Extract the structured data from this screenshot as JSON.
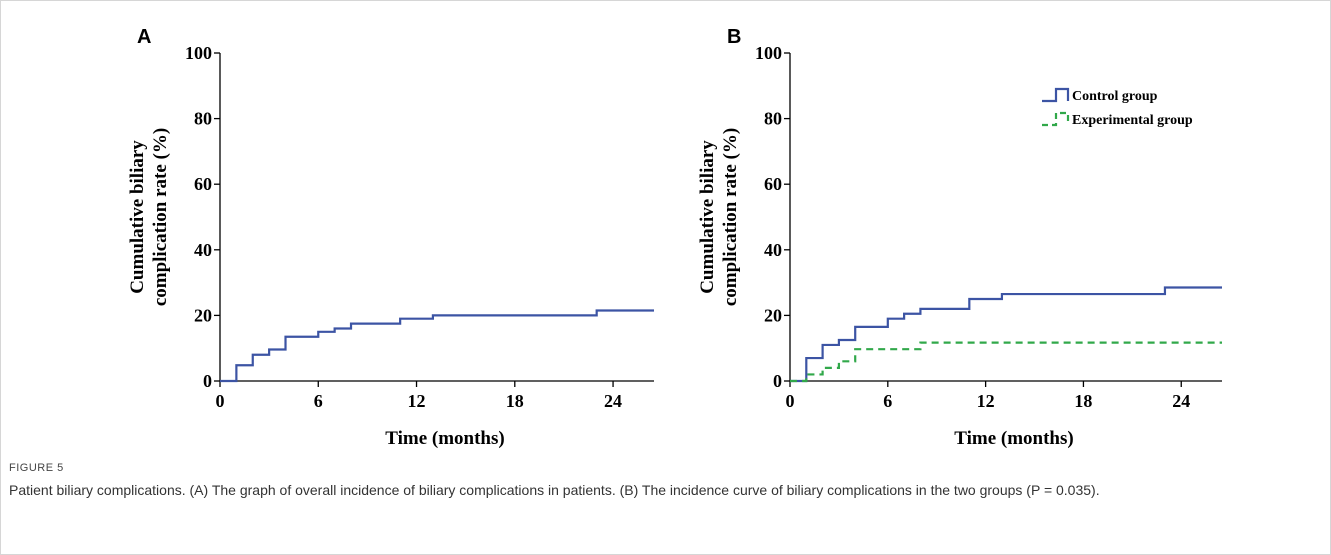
{
  "chart_data": [
    {
      "type": "line",
      "panel_label": "A",
      "title": "",
      "xlabel": "Time (months)",
      "ylabel_lines": [
        "Cumulative biliary",
        "complication rate (%)"
      ],
      "xlim": [
        0,
        26.5
      ],
      "ylim": [
        0,
        100
      ],
      "xticks": [
        0,
        6,
        12,
        18,
        24
      ],
      "yticks": [
        0,
        20,
        40,
        60,
        80,
        100
      ],
      "step": true,
      "legend": null,
      "series": [
        {
          "color": "#3c54a4",
          "dashed": false,
          "x": [
            0,
            1,
            2,
            3,
            4,
            6,
            7,
            8,
            11,
            13,
            23,
            26.5
          ],
          "y": [
            0,
            4.8,
            8.0,
            9.6,
            13.5,
            15.0,
            16.0,
            17.5,
            19.0,
            20.0,
            21.5,
            21.5
          ]
        }
      ]
    },
    {
      "type": "line",
      "panel_label": "B",
      "title": "",
      "xlabel": "Time (months)",
      "ylabel_lines": [
        "Cumulative biliary",
        "complication rate (%)"
      ],
      "xlim": [
        0,
        26.5
      ],
      "ylim": [
        0,
        100
      ],
      "xticks": [
        0,
        6,
        12,
        18,
        24
      ],
      "yticks": [
        0,
        20,
        40,
        60,
        80,
        100
      ],
      "step": true,
      "legend": "top-right",
      "series": [
        {
          "name": "Control group",
          "color": "#3c54a4",
          "dashed": false,
          "x": [
            0,
            1,
            2,
            3,
            4,
            6,
            7,
            8,
            11,
            13,
            23,
            26.5
          ],
          "y": [
            0,
            7.0,
            11.0,
            12.5,
            16.5,
            19.0,
            20.5,
            22.0,
            25.0,
            26.5,
            28.5,
            28.5
          ]
        },
        {
          "name": "Experimental group",
          "color": "#31a84a",
          "dashed": true,
          "x": [
            0,
            1,
            2,
            3,
            4,
            8,
            26.5
          ],
          "y": [
            0,
            2.0,
            4.0,
            6.0,
            9.7,
            11.7,
            11.7
          ]
        }
      ]
    }
  ],
  "caption": {
    "label": "FIGURE 5",
    "text": "Patient biliary complications. (A) The graph of overall incidence of biliary complications in patients. (B) The incidence curve of biliary complications in the two groups (P = 0.035)."
  }
}
